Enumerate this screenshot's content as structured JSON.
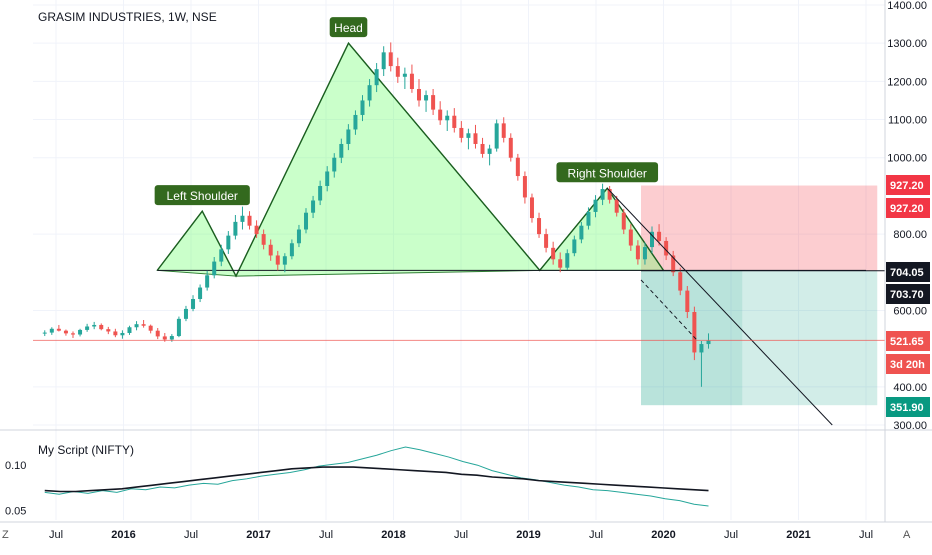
{
  "chart_data": {
    "type": "candlestick",
    "title": "GRASIM INDUSTRIES, 1W, NSE",
    "price_axis": {
      "ticks": [
        "1400.00",
        "1300.00",
        "1200.00",
        "1100.00",
        "1000.00",
        "800.00",
        "600.00",
        "400.00",
        "300.00"
      ],
      "tick_values": [
        1400,
        1300,
        1200,
        1100,
        1000,
        800,
        600,
        400,
        300
      ],
      "ylim": [
        295,
        1410
      ]
    },
    "time_axis": {
      "labels": [
        "Jul",
        "2016",
        "Jul",
        "2017",
        "Jul",
        "2018",
        "Jul",
        "2019",
        "Jul",
        "2020",
        "Jul",
        "2021",
        "Jul"
      ],
      "label_dates": [
        "2015-07",
        "2016-01",
        "2016-07",
        "2017-01",
        "2017-07",
        "2018-01",
        "2018-07",
        "2019-01",
        "2019-07",
        "2020-01",
        "2020-07",
        "2021-01",
        "2021-07"
      ]
    },
    "price_badges": [
      {
        "text": "927.20",
        "value": 927.2,
        "color": "#f23645"
      },
      {
        "text": "927.20",
        "value": 927.2,
        "color": "#f23645"
      },
      {
        "text": "704.05",
        "value": 704.05,
        "color": "#131722"
      },
      {
        "text": "703.70",
        "value": 703.7,
        "color": "#131722"
      },
      {
        "text": "521.65",
        "value": 521.65,
        "color": "#ef5350"
      },
      {
        "text": "3d 20h",
        "value": null,
        "color": "#ef5350"
      },
      {
        "text": "351.90",
        "value": 351.9,
        "color": "#089981"
      }
    ],
    "annotations": [
      {
        "text": "Left Shoulder",
        "date": "2016-08",
        "price": 860
      },
      {
        "text": "Head",
        "date": "2017-09",
        "price": 1300
      },
      {
        "text": "Right Shoulder",
        "date": "2019-08",
        "price": 920
      }
    ],
    "pattern": {
      "points": [
        {
          "date": "2016-04",
          "price": 705
        },
        {
          "date": "2016-08",
          "price": 860
        },
        {
          "date": "2016-11",
          "price": 690
        },
        {
          "date": "2017-09",
          "price": 1300
        },
        {
          "date": "2019-02",
          "price": 705
        },
        {
          "date": "2019-08",
          "price": 920
        },
        {
          "date": "2020-01",
          "price": 705
        }
      ],
      "neckline": [
        {
          "date": "2016-04",
          "price": 705
        },
        {
          "date": "2021-07",
          "price": 705
        }
      ],
      "target_line": [
        {
          "date": "2019-08",
          "price": 920
        },
        {
          "date": "2021-04",
          "price": 300
        }
      ]
    },
    "position": {
      "entry": 704.05,
      "stop": 927.2,
      "target": 351.9,
      "current": 521.65,
      "start_date": "2019-11",
      "end_date": "2021-08"
    },
    "indicator": {
      "label": "My Script (NIFTY)",
      "ticks": [
        "0.10",
        "0.05"
      ],
      "tick_values": [
        0.1,
        0.05
      ],
      "ylim": [
        0.044,
        0.13
      ],
      "series": [
        {
          "color": "#26a69a",
          "values": [
            0.07,
            0.068,
            0.071,
            0.069,
            0.072,
            0.07,
            0.074,
            0.073,
            0.076,
            0.075,
            0.078,
            0.08,
            0.079,
            0.083,
            0.085,
            0.088,
            0.09,
            0.092,
            0.095,
            0.099,
            0.101,
            0.103,
            0.107,
            0.111,
            0.116,
            0.12,
            0.117,
            0.113,
            0.109,
            0.104,
            0.1,
            0.094,
            0.09,
            0.086,
            0.084,
            0.081,
            0.078,
            0.076,
            0.073,
            0.072,
            0.07,
            0.068,
            0.066,
            0.063,
            0.061,
            0.057,
            0.055
          ]
        },
        {
          "color": "#131722",
          "values": [
            0.072,
            0.071,
            0.071,
            0.072,
            0.073,
            0.074,
            0.076,
            0.078,
            0.08,
            0.082,
            0.084,
            0.086,
            0.088,
            0.09,
            0.092,
            0.094,
            0.096,
            0.097,
            0.098,
            0.098,
            0.098,
            0.097,
            0.096,
            0.095,
            0.094,
            0.093,
            0.092,
            0.09,
            0.089,
            0.087,
            0.086,
            0.085,
            0.083,
            0.082,
            0.081,
            0.08,
            0.079,
            0.078,
            0.077,
            0.076,
            0.075,
            0.074,
            0.073,
            0.072
          ]
        }
      ]
    },
    "candles": [
      [
        540,
        548,
        533,
        542
      ],
      [
        542,
        556,
        536,
        552
      ],
      [
        552,
        562,
        545,
        547
      ],
      [
        547,
        550,
        534,
        540
      ],
      [
        540,
        545,
        528,
        537
      ],
      [
        537,
        552,
        532,
        549
      ],
      [
        549,
        565,
        544,
        558
      ],
      [
        558,
        570,
        551,
        562
      ],
      [
        562,
        566,
        548,
        551
      ],
      [
        551,
        557,
        538,
        545
      ],
      [
        545,
        552,
        530,
        535
      ],
      [
        535,
        548,
        526,
        541
      ],
      [
        541,
        560,
        536,
        556
      ],
      [
        556,
        572,
        548,
        564
      ],
      [
        564,
        575,
        555,
        560
      ],
      [
        560,
        563,
        540,
        547
      ],
      [
        547,
        554,
        525,
        532
      ],
      [
        532,
        541,
        518,
        524
      ],
      [
        524,
        538,
        518,
        533
      ],
      [
        533,
        584,
        530,
        578
      ],
      [
        578,
        612,
        572,
        604
      ],
      [
        604,
        640,
        598,
        630
      ],
      [
        630,
        668,
        622,
        660
      ],
      [
        660,
        704,
        652,
        692
      ],
      [
        692,
        740,
        684,
        728
      ],
      [
        728,
        772,
        716,
        760
      ],
      [
        760,
        808,
        748,
        796
      ],
      [
        796,
        850,
        786,
        832
      ],
      [
        832,
        872,
        812,
        848
      ],
      [
        848,
        860,
        812,
        822
      ],
      [
        822,
        836,
        790,
        800
      ],
      [
        800,
        812,
        760,
        772
      ],
      [
        772,
        786,
        730,
        744
      ],
      [
        744,
        756,
        705,
        720
      ],
      [
        720,
        750,
        700,
        742
      ],
      [
        742,
        786,
        734,
        776
      ],
      [
        776,
        824,
        766,
        812
      ],
      [
        812,
        868,
        802,
        856
      ],
      [
        856,
        900,
        842,
        888
      ],
      [
        888,
        940,
        876,
        926
      ],
      [
        926,
        978,
        912,
        964
      ],
      [
        964,
        1012,
        948,
        1000
      ],
      [
        1000,
        1050,
        986,
        1036
      ],
      [
        1036,
        1088,
        1020,
        1074
      ],
      [
        1074,
        1124,
        1060,
        1112
      ],
      [
        1112,
        1164,
        1096,
        1150
      ],
      [
        1150,
        1206,
        1134,
        1190
      ],
      [
        1190,
        1248,
        1172,
        1232
      ],
      [
        1232,
        1292,
        1214,
        1276
      ],
      [
        1276,
        1302,
        1226,
        1240
      ],
      [
        1240,
        1262,
        1196,
        1212
      ],
      [
        1212,
        1236,
        1180,
        1220
      ],
      [
        1220,
        1244,
        1170,
        1180
      ],
      [
        1180,
        1206,
        1134,
        1150
      ],
      [
        1150,
        1176,
        1120,
        1164
      ],
      [
        1164,
        1180,
        1112,
        1126
      ],
      [
        1126,
        1148,
        1086,
        1098
      ],
      [
        1098,
        1124,
        1070,
        1110
      ],
      [
        1110,
        1130,
        1066,
        1078
      ],
      [
        1078,
        1096,
        1040,
        1052
      ],
      [
        1052,
        1076,
        1022,
        1064
      ],
      [
        1064,
        1086,
        1024,
        1036
      ],
      [
        1036,
        1052,
        1000,
        1010
      ],
      [
        1010,
        1034,
        980,
        1024
      ],
      [
        1024,
        1100,
        1016,
        1090
      ],
      [
        1090,
        1106,
        1040,
        1052
      ],
      [
        1052,
        1064,
        990,
        1000
      ],
      [
        1000,
        1010,
        940,
        952
      ],
      [
        952,
        964,
        880,
        896
      ],
      [
        896,
        906,
        830,
        842
      ],
      [
        842,
        856,
        790,
        800
      ],
      [
        800,
        814,
        752,
        764
      ],
      [
        764,
        780,
        720,
        734
      ],
      [
        734,
        752,
        700,
        712
      ],
      [
        712,
        760,
        706,
        750
      ],
      [
        750,
        796,
        742,
        786
      ],
      [
        786,
        832,
        776,
        822
      ],
      [
        822,
        870,
        812,
        858
      ],
      [
        858,
        902,
        844,
        890
      ],
      [
        890,
        932,
        876,
        918
      ],
      [
        918,
        926,
        880,
        890
      ],
      [
        890,
        900,
        846,
        856
      ],
      [
        856,
        866,
        800,
        812
      ],
      [
        812,
        826,
        756,
        770
      ],
      [
        770,
        784,
        720,
        734
      ],
      [
        734,
        778,
        720,
        766
      ],
      [
        766,
        820,
        750,
        806
      ],
      [
        806,
        826,
        770,
        782
      ],
      [
        782,
        792,
        732,
        744
      ],
      [
        744,
        756,
        690,
        700
      ],
      [
        700,
        712,
        640,
        652
      ],
      [
        652,
        664,
        580,
        596
      ],
      [
        596,
        610,
        470,
        490
      ],
      [
        490,
        520,
        400,
        512
      ],
      [
        512,
        540,
        500,
        521
      ]
    ]
  }
}
